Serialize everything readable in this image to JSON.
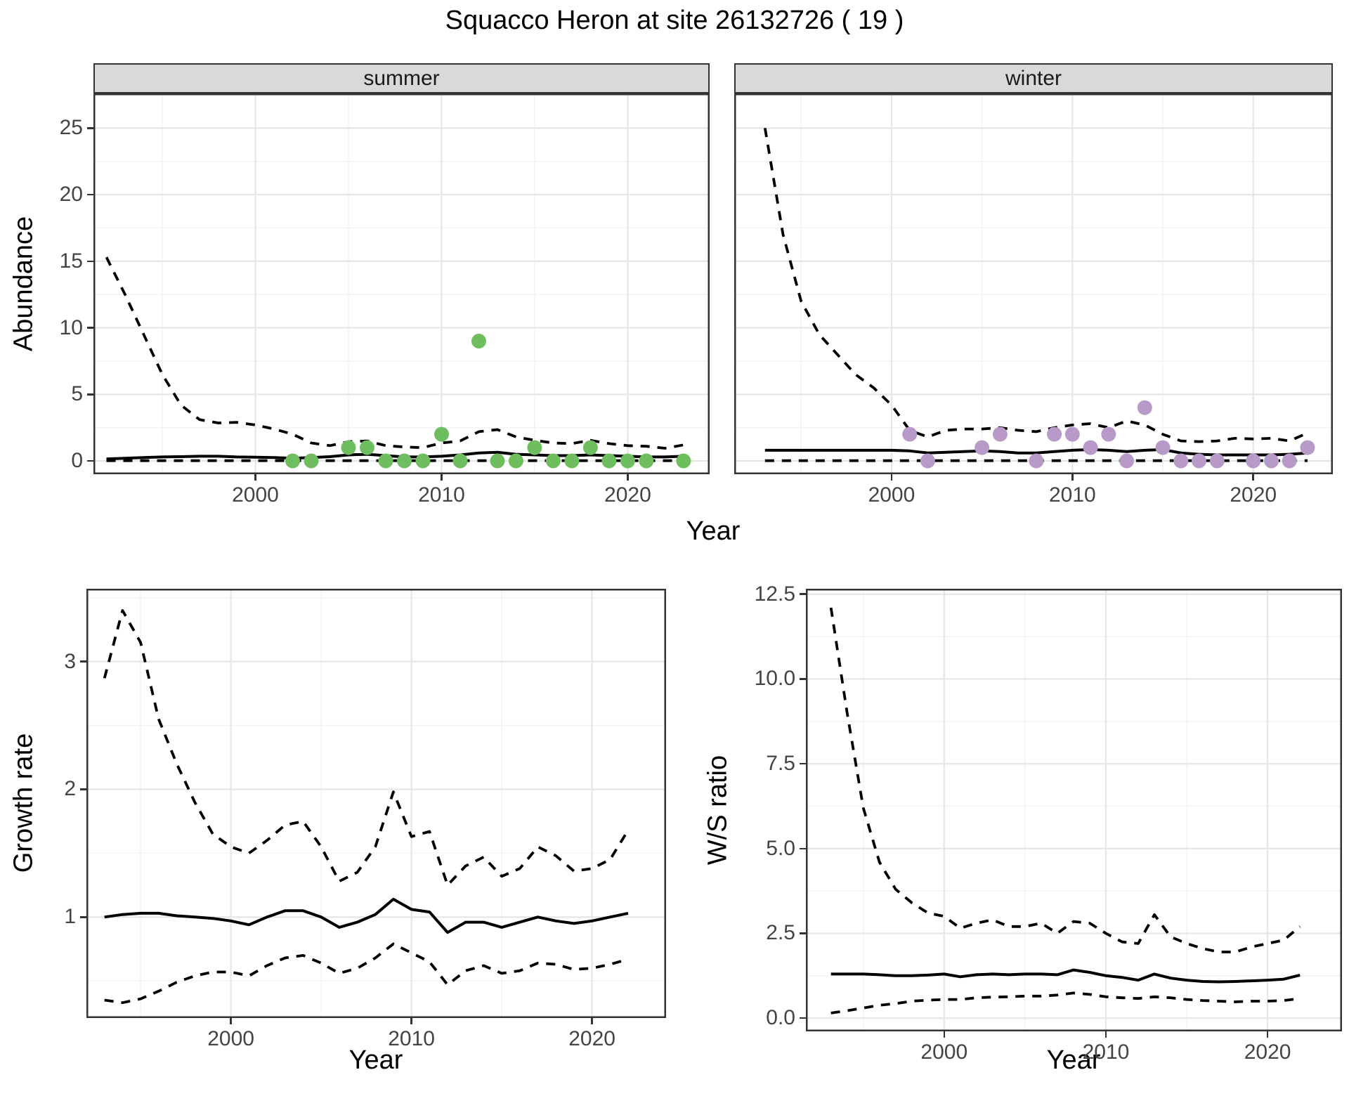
{
  "title": "Squacco Heron at site 26132726 ( 19 )",
  "axis_labels": {
    "year": "Year",
    "abundance": "Abundance",
    "growth_rate": "Growth rate",
    "ws_ratio": "W/S ratio"
  },
  "colors": {
    "summer_point": "#6ebe5f",
    "winter_point": "#b89ac8",
    "line": "#000000",
    "grid_major": "#e6e6e6",
    "grid_minor": "#f3f3f3",
    "strip_bg": "#d9d9d9",
    "panel_border": "#333333",
    "tick_text": "#444444"
  },
  "chart_data": [
    {
      "type": "line+scatter",
      "facet_label": "summer",
      "ylabel": "Abundance",
      "xlabel": "Year",
      "xlim": [
        1991.3,
        2024.4
      ],
      "ylim": [
        -1.0,
        27.6
      ],
      "xticks": {
        "values": [
          2000,
          2010,
          2020
        ],
        "labels": [
          "2000",
          "2010",
          "2020"
        ]
      },
      "yticks": {
        "values": [
          0,
          5,
          10,
          15,
          20,
          25
        ],
        "labels": [
          "0",
          "5",
          "10",
          "15",
          "20",
          "25"
        ]
      },
      "grid": true,
      "legend": "none",
      "point_color": "#6ebe5f",
      "series": [
        {
          "name": "upper_ci",
          "style": "dashed",
          "x": [
            1992,
            1993,
            1994,
            1995,
            1996,
            1997,
            1998,
            1999,
            2000,
            2001,
            2002,
            2003,
            2004,
            2005,
            2006,
            2007,
            2008,
            2009,
            2010,
            2011,
            2012,
            2013,
            2014,
            2015,
            2016,
            2017,
            2018,
            2019,
            2020,
            2021,
            2022,
            2023
          ],
          "y": [
            15.3,
            12.5,
            9.5,
            6.5,
            4.2,
            3.1,
            2.85,
            2.9,
            2.7,
            2.4,
            2.0,
            1.35,
            1.15,
            1.45,
            1.5,
            1.15,
            1.05,
            1.0,
            1.35,
            1.5,
            2.2,
            2.35,
            1.8,
            1.55,
            1.35,
            1.3,
            1.55,
            1.3,
            1.15,
            1.1,
            0.95,
            1.2
          ]
        },
        {
          "name": "median",
          "style": "solid",
          "x": [
            1992,
            1993,
            1994,
            1995,
            1996,
            1997,
            1998,
            1999,
            2000,
            2001,
            2002,
            2003,
            2004,
            2005,
            2006,
            2007,
            2008,
            2009,
            2010,
            2011,
            2012,
            2013,
            2014,
            2015,
            2016,
            2017,
            2018,
            2019,
            2020,
            2021,
            2022,
            2023
          ],
          "y": [
            0.15,
            0.2,
            0.25,
            0.3,
            0.32,
            0.35,
            0.35,
            0.3,
            0.28,
            0.25,
            0.2,
            0.25,
            0.32,
            0.45,
            0.5,
            0.4,
            0.3,
            0.3,
            0.35,
            0.45,
            0.6,
            0.65,
            0.5,
            0.45,
            0.4,
            0.4,
            0.45,
            0.4,
            0.35,
            0.3,
            0.3,
            0.35
          ]
        },
        {
          "name": "lower_ci",
          "style": "dashed",
          "x": [
            1992,
            1993,
            1994,
            1995,
            1996,
            1997,
            1998,
            1999,
            2000,
            2001,
            2002,
            2003,
            2004,
            2005,
            2006,
            2007,
            2008,
            2009,
            2010,
            2011,
            2012,
            2013,
            2014,
            2015,
            2016,
            2017,
            2018,
            2019,
            2020,
            2021,
            2022,
            2023
          ],
          "y": [
            0.02,
            0.02,
            0.02,
            0.02,
            0.02,
            0.02,
            0.02,
            0.02,
            0.02,
            0.02,
            0.02,
            0.02,
            0.02,
            0.02,
            0.02,
            0.02,
            0.02,
            0.02,
            0.02,
            0.02,
            0.02,
            0.02,
            0.02,
            0.02,
            0.02,
            0.02,
            0.02,
            0.02,
            0.02,
            0.02,
            0.02,
            0.02
          ]
        }
      ],
      "points": {
        "x": [
          2002,
          2003,
          2005,
          2006,
          2007,
          2008,
          2009,
          2010,
          2011,
          2012,
          2013,
          2014,
          2015,
          2016,
          2017,
          2018,
          2019,
          2020,
          2021,
          2023
        ],
        "y": [
          0,
          0,
          1,
          1,
          0,
          0,
          0,
          2,
          0,
          9,
          0,
          0,
          1,
          0,
          0,
          1,
          0,
          0,
          0,
          0
        ]
      }
    },
    {
      "type": "line+scatter",
      "facet_label": "winter",
      "ylabel": "Abundance",
      "xlabel": "Year",
      "xlim": [
        1991.3,
        2024.4
      ],
      "ylim": [
        -1.0,
        27.6
      ],
      "xticks": {
        "values": [
          2000,
          2010,
          2020
        ],
        "labels": [
          "2000",
          "2010",
          "2020"
        ]
      },
      "yticks": {
        "values": [
          0,
          5,
          10,
          15,
          20,
          25
        ],
        "labels": [
          "0",
          "5",
          "10",
          "15",
          "20",
          "25"
        ]
      },
      "grid": true,
      "legend": "none",
      "point_color": "#b89ac8",
      "series": [
        {
          "name": "upper_ci",
          "style": "dashed",
          "x": [
            1993,
            1994,
            1995,
            1996,
            1997,
            1998,
            1999,
            2000,
            2001,
            2002,
            2003,
            2004,
            2005,
            2006,
            2007,
            2008,
            2009,
            2010,
            2011,
            2012,
            2013,
            2014,
            2015,
            2016,
            2017,
            2018,
            2019,
            2020,
            2021,
            2022,
            2023
          ],
          "y": [
            25,
            17,
            12,
            9.5,
            8,
            6.5,
            5.5,
            4.2,
            2.3,
            1.8,
            2.3,
            2.4,
            2.4,
            2.5,
            2.3,
            2.2,
            2.5,
            2.7,
            2.8,
            2.5,
            3.0,
            2.7,
            2.0,
            1.5,
            1.45,
            1.5,
            1.7,
            1.65,
            1.7,
            1.5,
            2.1
          ]
        },
        {
          "name": "median",
          "style": "solid",
          "x": [
            1993,
            1994,
            1995,
            1996,
            1997,
            1998,
            1999,
            2000,
            2001,
            2002,
            2003,
            2004,
            2005,
            2006,
            2007,
            2008,
            2009,
            2010,
            2011,
            2012,
            2013,
            2014,
            2015,
            2016,
            2017,
            2018,
            2019,
            2020,
            2021,
            2022,
            2023
          ],
          "y": [
            0.8,
            0.8,
            0.8,
            0.8,
            0.8,
            0.8,
            0.8,
            0.8,
            0.75,
            0.6,
            0.65,
            0.7,
            0.75,
            0.7,
            0.6,
            0.6,
            0.7,
            0.8,
            0.85,
            0.8,
            0.7,
            0.8,
            0.85,
            0.6,
            0.5,
            0.45,
            0.45,
            0.45,
            0.45,
            0.5,
            0.6
          ]
        },
        {
          "name": "lower_ci",
          "style": "dashed",
          "x": [
            1993,
            1994,
            1995,
            1996,
            1997,
            1998,
            1999,
            2000,
            2001,
            2002,
            2003,
            2004,
            2005,
            2006,
            2007,
            2008,
            2009,
            2010,
            2011,
            2012,
            2013,
            2014,
            2015,
            2016,
            2017,
            2018,
            2019,
            2020,
            2021,
            2022,
            2023
          ],
          "y": [
            0.02,
            0.02,
            0.02,
            0.02,
            0.02,
            0.02,
            0.02,
            0.02,
            0.02,
            0.02,
            0.02,
            0.02,
            0.02,
            0.02,
            0.02,
            0.02,
            0.02,
            0.02,
            0.02,
            0.02,
            0.02,
            0.02,
            0.02,
            0.02,
            0.02,
            0.02,
            0.02,
            0.02,
            0.02,
            0.02,
            0.02
          ]
        }
      ],
      "points": {
        "x": [
          2001,
          2002,
          2005,
          2006,
          2008,
          2009,
          2010,
          2011,
          2012,
          2013,
          2014,
          2015,
          2016,
          2017,
          2018,
          2020,
          2021,
          2022,
          2023
        ],
        "y": [
          2,
          0,
          1,
          2,
          0,
          2,
          2,
          1,
          2,
          0,
          4,
          1,
          0,
          0,
          0,
          0,
          0,
          0,
          1
        ]
      }
    },
    {
      "type": "line",
      "facet_label": "",
      "ylabel": "Growth rate",
      "xlabel": "Year",
      "xlim": [
        1992,
        2024.1
      ],
      "ylim": [
        0.21,
        3.57
      ],
      "xticks": {
        "values": [
          2000,
          2010,
          2020
        ],
        "labels": [
          "2000",
          "2010",
          "2020"
        ]
      },
      "yticks": {
        "values": [
          1,
          2,
          3
        ],
        "labels": [
          "1",
          "2",
          "3"
        ]
      },
      "grid": true,
      "legend": "none",
      "point_color": null,
      "series": [
        {
          "name": "upper_ci",
          "style": "dashed",
          "x": [
            1993,
            1994,
            1995,
            1996,
            1997,
            1998,
            1999,
            2000,
            2001,
            2002,
            2003,
            2004,
            2005,
            2006,
            2007,
            2008,
            2009,
            2010,
            2011,
            2012,
            2013,
            2014,
            2015,
            2016,
            2017,
            2018,
            2019,
            2020,
            2021,
            2022
          ],
          "y": [
            2.87,
            3.4,
            3.15,
            2.55,
            2.2,
            1.9,
            1.65,
            1.55,
            1.5,
            1.6,
            1.72,
            1.75,
            1.55,
            1.28,
            1.35,
            1.55,
            1.98,
            1.63,
            1.67,
            1.25,
            1.4,
            1.47,
            1.32,
            1.38,
            1.55,
            1.48,
            1.36,
            1.38,
            1.45,
            1.68
          ]
        },
        {
          "name": "median",
          "style": "solid",
          "x": [
            1993,
            1994,
            1995,
            1996,
            1997,
            1998,
            1999,
            2000,
            2001,
            2002,
            2003,
            2004,
            2005,
            2006,
            2007,
            2008,
            2009,
            2010,
            2011,
            2012,
            2013,
            2014,
            2015,
            2016,
            2017,
            2018,
            2019,
            2020,
            2021,
            2022
          ],
          "y": [
            1.0,
            1.02,
            1.03,
            1.03,
            1.01,
            1.0,
            0.99,
            0.97,
            0.94,
            1.0,
            1.05,
            1.05,
            1.0,
            0.92,
            0.96,
            1.02,
            1.14,
            1.06,
            1.04,
            0.88,
            0.96,
            0.96,
            0.92,
            0.96,
            1.0,
            0.97,
            0.95,
            0.97,
            1.0,
            1.03
          ]
        },
        {
          "name": "lower_ci",
          "style": "dashed",
          "x": [
            1993,
            1994,
            1995,
            1996,
            1997,
            1998,
            1999,
            2000,
            2001,
            2002,
            2003,
            2004,
            2005,
            2006,
            2007,
            2008,
            2009,
            2010,
            2011,
            2012,
            2013,
            2014,
            2015,
            2016,
            2017,
            2018,
            2019,
            2020,
            2021,
            2022
          ],
          "y": [
            0.35,
            0.33,
            0.36,
            0.42,
            0.49,
            0.54,
            0.57,
            0.57,
            0.54,
            0.62,
            0.68,
            0.7,
            0.64,
            0.56,
            0.6,
            0.68,
            0.79,
            0.72,
            0.65,
            0.47,
            0.58,
            0.62,
            0.56,
            0.58,
            0.64,
            0.63,
            0.59,
            0.6,
            0.63,
            0.67
          ]
        }
      ],
      "points": null
    },
    {
      "type": "line",
      "facet_label": "",
      "ylabel": "W/S ratio",
      "xlabel": "Year",
      "xlim": [
        1991.45,
        2024.6
      ],
      "ylim": [
        -0.39,
        12.66
      ],
      "xticks": {
        "values": [
          2000,
          2010,
          2020
        ],
        "labels": [
          "2000",
          "2010",
          "2020"
        ]
      },
      "yticks": {
        "values": [
          0,
          2.5,
          5,
          7.5,
          10,
          12.5
        ],
        "labels": [
          "0.0",
          "2.5",
          "5.0",
          "7.5",
          "10.0",
          "12.5"
        ]
      },
      "grid": true,
      "legend": "none",
      "point_color": null,
      "series": [
        {
          "name": "upper_ci",
          "style": "dashed",
          "x": [
            1993,
            1994,
            1995,
            1996,
            1997,
            1998,
            1999,
            2000,
            2001,
            2002,
            2003,
            2004,
            2005,
            2006,
            2007,
            2008,
            2009,
            2010,
            2011,
            2012,
            2013,
            2014,
            2015,
            2016,
            2017,
            2018,
            2019,
            2020,
            2021,
            2022
          ],
          "y": [
            12.1,
            9.0,
            6.2,
            4.6,
            3.8,
            3.4,
            3.1,
            3.0,
            2.65,
            2.8,
            2.9,
            2.7,
            2.7,
            2.8,
            2.5,
            2.85,
            2.8,
            2.5,
            2.25,
            2.2,
            3.05,
            2.4,
            2.2,
            2.05,
            1.95,
            1.95,
            2.1,
            2.2,
            2.3,
            2.7
          ]
        },
        {
          "name": "median",
          "style": "solid",
          "x": [
            1993,
            1994,
            1995,
            1996,
            1997,
            1998,
            1999,
            2000,
            2001,
            2002,
            2003,
            2004,
            2005,
            2006,
            2007,
            2008,
            2009,
            2010,
            2011,
            2012,
            2013,
            2014,
            2015,
            2016,
            2017,
            2018,
            2019,
            2020,
            2021,
            2022
          ],
          "y": [
            1.3,
            1.3,
            1.3,
            1.28,
            1.25,
            1.25,
            1.27,
            1.3,
            1.22,
            1.28,
            1.3,
            1.28,
            1.3,
            1.3,
            1.28,
            1.42,
            1.35,
            1.25,
            1.2,
            1.12,
            1.3,
            1.18,
            1.12,
            1.08,
            1.07,
            1.08,
            1.1,
            1.12,
            1.15,
            1.27
          ]
        },
        {
          "name": "lower_ci",
          "style": "dashed",
          "x": [
            1993,
            1994,
            1995,
            1996,
            1997,
            1998,
            1999,
            2000,
            2001,
            2002,
            2003,
            2004,
            2005,
            2006,
            2007,
            2008,
            2009,
            2010,
            2011,
            2012,
            2013,
            2014,
            2015,
            2016,
            2017,
            2018,
            2019,
            2020,
            2021,
            2022
          ],
          "y": [
            0.15,
            0.22,
            0.3,
            0.38,
            0.43,
            0.5,
            0.53,
            0.55,
            0.55,
            0.6,
            0.62,
            0.63,
            0.65,
            0.65,
            0.68,
            0.74,
            0.7,
            0.63,
            0.6,
            0.58,
            0.63,
            0.6,
            0.55,
            0.52,
            0.5,
            0.48,
            0.5,
            0.5,
            0.52,
            0.58
          ]
        }
      ],
      "points": null
    }
  ]
}
